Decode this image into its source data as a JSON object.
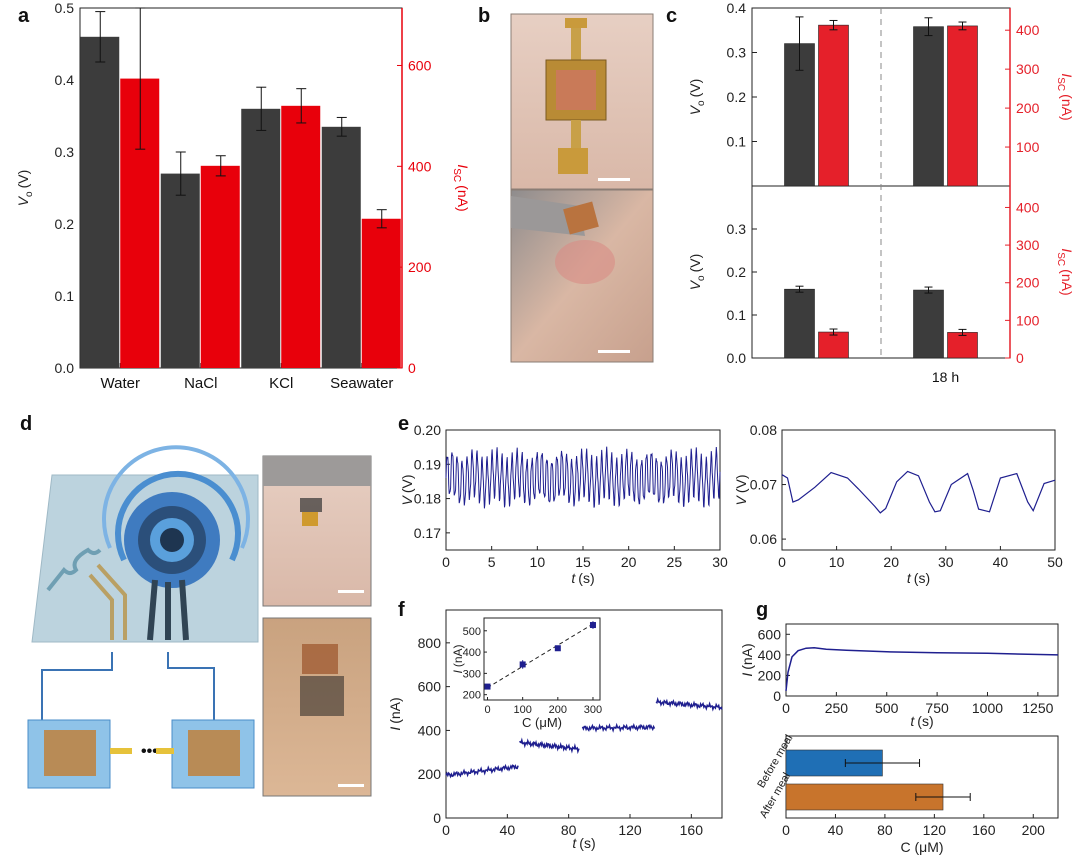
{
  "panel_labels": [
    "a",
    "b",
    "c",
    "d",
    "e",
    "f",
    "g"
  ],
  "colors": {
    "dark": "#3c3c3c",
    "red": "#e8000b",
    "red2": "#e5202a",
    "navy": "#1f1f8f",
    "blue": "#1f6fb5",
    "orange": "#c8742c"
  },
  "chart_data": [
    {
      "id": "a",
      "type": "bar",
      "categories": [
        "Water",
        "NaCl",
        "KCl",
        "Seawater"
      ],
      "ylabel_main": "V",
      "ylabel_sub": "o",
      "ylabel_unit": "(V)",
      "y2label_main": "I",
      "y2label_sub": "SC",
      "y2label_unit": "(nA)",
      "ylim": [
        0,
        0.5
      ],
      "y2lim": [
        0,
        714
      ],
      "yticks": [
        "0.0",
        "0.1",
        "0.2",
        "0.3",
        "0.4",
        "0.5"
      ],
      "y2ticks": [
        "0",
        "200",
        "400",
        "600"
      ],
      "series": [
        {
          "axis": "left",
          "values": [
            0.46,
            0.27,
            0.36,
            0.335
          ],
          "errors": [
            0.035,
            0.03,
            0.03,
            0.013
          ]
        },
        {
          "axis": "right",
          "values": [
            574,
            401,
            520,
            296
          ],
          "errors": [
            140,
            20,
            34,
            18
          ]
        }
      ]
    },
    {
      "id": "c",
      "type": "bar",
      "categories": [
        "",
        "18 h"
      ],
      "top": {
        "ylim": [
          0,
          0.4
        ],
        "y2lim": [
          0,
          457
        ],
        "yticks": [
          "0.1",
          "0.2",
          "0.3",
          "0.4"
        ],
        "y2ticks": [
          "100",
          "200",
          "300",
          "400"
        ],
        "series": [
          {
            "axis": "left",
            "values": [
              0.32,
              0.358
            ],
            "errors": [
              0.06,
              0.02
            ]
          },
          {
            "axis": "right",
            "values": [
              413,
              411
            ],
            "errors": [
              12,
              10
            ]
          }
        ]
      },
      "bottom": {
        "ylim": [
          0,
          0.4
        ],
        "y2lim": [
          0,
          457
        ],
        "yticks": [
          "0.0",
          "0.1",
          "0.2",
          "0.3"
        ],
        "y2ticks": [
          "0",
          "100",
          "200",
          "300",
          "400"
        ],
        "series": [
          {
            "axis": "left",
            "values": [
              0.16,
              0.158
            ],
            "errors": [
              0.007,
              0.007
            ]
          },
          {
            "axis": "right",
            "values": [
              69,
              68
            ],
            "errors": [
              8,
              8
            ]
          }
        ]
      },
      "ylabel_main": "V",
      "ylabel_sub": "o",
      "ylabel_unit": "(V)",
      "y2label_main": "I",
      "y2label_sub": "SC",
      "y2label_unit": "(nA)"
    },
    {
      "id": "e1",
      "type": "line",
      "xlabel_main": "t",
      "xlabel_unit": "(s)",
      "ylabel_main": "V",
      "ylabel_unit": "(V)",
      "xlim": [
        0,
        30
      ],
      "ylim": [
        0.165,
        0.2
      ],
      "xticks": [
        "0",
        "5",
        "10",
        "15",
        "20",
        "25",
        "30"
      ],
      "yticks": [
        "0.17",
        "0.18",
        "0.19",
        "0.20"
      ],
      "signal": {
        "mean": 0.186,
        "amplitude": 0.0065,
        "cycles": 55
      }
    },
    {
      "id": "e2",
      "type": "line",
      "xlabel_main": "t",
      "xlabel_unit": "(s)",
      "ylabel_main": "V",
      "ylabel_unit": "(V)",
      "xlim": [
        0,
        50
      ],
      "ylim": [
        0.058,
        0.08
      ],
      "xticks": [
        "0",
        "10",
        "20",
        "30",
        "40",
        "50"
      ],
      "yticks": [
        "0.06",
        "0.07",
        "0.08"
      ],
      "x": [
        0,
        1,
        2,
        3,
        6,
        9,
        12,
        14,
        17,
        18,
        19,
        21,
        23,
        25,
        27,
        28,
        29,
        31,
        34,
        35,
        36,
        38,
        40,
        43,
        45,
        46,
        48,
        50
      ],
      "y": [
        0.0718,
        0.0712,
        0.0668,
        0.0672,
        0.0695,
        0.0722,
        0.0712,
        0.0692,
        0.066,
        0.0648,
        0.0656,
        0.0705,
        0.0724,
        0.0716,
        0.0668,
        0.065,
        0.0652,
        0.07,
        0.072,
        0.069,
        0.0655,
        0.065,
        0.0712,
        0.072,
        0.0668,
        0.0652,
        0.0702,
        0.0708
      ]
    },
    {
      "id": "f",
      "type": "line",
      "xlabel_main": "t",
      "xlabel_unit": "(s)",
      "ylabel_main": "I",
      "ylabel_unit": "(nA)",
      "xlim": [
        0,
        180
      ],
      "ylim": [
        0,
        950
      ],
      "xticks": [
        "0",
        "40",
        "80",
        "120",
        "160"
      ],
      "yticks": [
        "0",
        "200",
        "400",
        "600",
        "800"
      ],
      "steps": [
        {
          "x0": 0,
          "x1": 47,
          "y0": 195,
          "y1": 235
        },
        {
          "x0": 48,
          "x1": 87,
          "y0": 345,
          "y1": 315
        },
        {
          "x0": 89,
          "x1": 136,
          "y0": 410,
          "y1": 415
        },
        {
          "x0": 137,
          "x1": 180,
          "y0": 530,
          "y1": 505
        }
      ],
      "inset": {
        "type": "scatter",
        "xlabel": "C (μM)",
        "ylabel_main": "I",
        "ylabel_unit": "(nA)",
        "xlim": [
          -10,
          320
        ],
        "ylim": [
          175,
          560
        ],
        "xticks": [
          "0",
          "100",
          "200",
          "300"
        ],
        "yticks": [
          "200",
          "300",
          "400",
          "500"
        ],
        "x": [
          0,
          100,
          200,
          300
        ],
        "y": [
          238,
          342,
          418,
          527
        ],
        "errors": [
          8,
          20,
          8,
          18
        ]
      }
    },
    {
      "id": "g1",
      "type": "line",
      "xlabel_main": "t",
      "xlabel_unit": "(s)",
      "ylabel_main": "I",
      "ylabel_unit": "(nA)",
      "xlim": [
        0,
        1350
      ],
      "ylim": [
        0,
        700
      ],
      "xticks": [
        "0",
        "250",
        "500",
        "750",
        "1000",
        "1250"
      ],
      "yticks": [
        "0",
        "200",
        "400",
        "600"
      ],
      "x": [
        0,
        10,
        30,
        60,
        100,
        140,
        200,
        300,
        500,
        750,
        1000,
        1200,
        1350
      ],
      "y": [
        50,
        230,
        380,
        440,
        465,
        470,
        455,
        445,
        430,
        420,
        415,
        405,
        400
      ]
    },
    {
      "id": "g2",
      "type": "bar",
      "orientation": "horizontal",
      "categories": [
        "Before meal",
        "After meal"
      ],
      "values": [
        78,
        127
      ],
      "errors": [
        30,
        22
      ],
      "xlabel": "C (μM)",
      "xlim": [
        0,
        220
      ],
      "xticks": [
        "0",
        "40",
        "80",
        "120",
        "160",
        "200"
      ]
    }
  ]
}
